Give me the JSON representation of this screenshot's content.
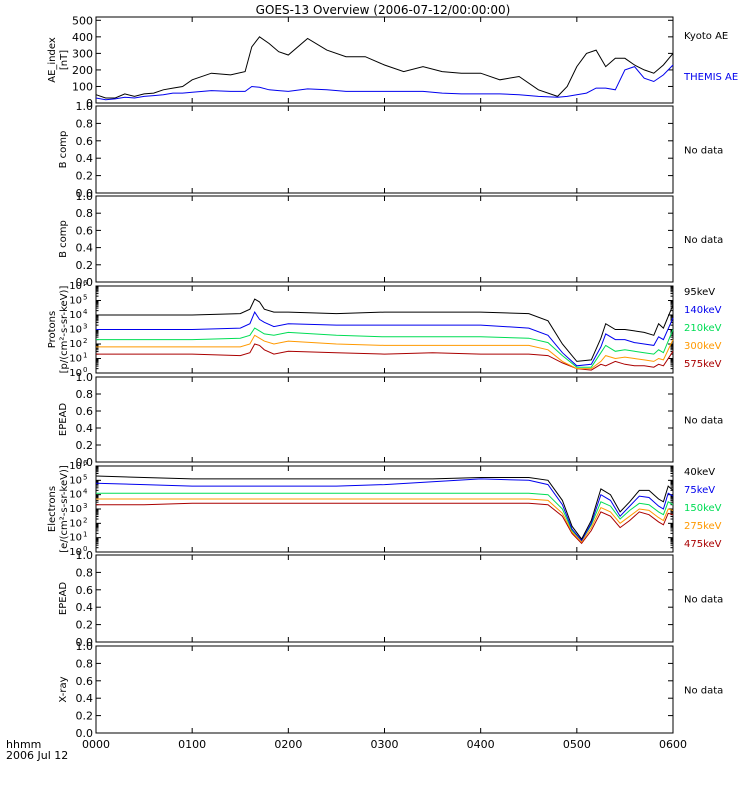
{
  "title": "GOES-13 Overview (2006-07-12/00:00:00)",
  "footer": {
    "line1": "hhmm",
    "line2": "2006 Jul 12"
  },
  "colors": {
    "black": "#000000",
    "blue": "#0000ee",
    "green": "#00dd55",
    "orange": "#ff9900",
    "red": "#aa0000"
  },
  "chart_data": {
    "type": "line",
    "x_unit": "hhmm",
    "x_range": [
      "0000",
      "0600"
    ],
    "x_ticks": [
      "0000",
      "0100",
      "0200",
      "0300",
      "0400",
      "0500",
      "0600"
    ],
    "panels": [
      {
        "ylabel": [
          "AE_index",
          "[nT]"
        ],
        "yticks": [
          "500",
          "400",
          "300",
          "200",
          "100",
          "0"
        ],
        "ylim": [
          0,
          520
        ],
        "scale": "linear",
        "x_hours": [
          0,
          0.1,
          0.2,
          0.3,
          0.4,
          0.5,
          0.6,
          0.7,
          0.8,
          0.9,
          1.0,
          1.2,
          1.4,
          1.55,
          1.62,
          1.7,
          1.8,
          1.9,
          2.0,
          2.2,
          2.4,
          2.6,
          2.8,
          3.0,
          3.2,
          3.4,
          3.6,
          3.8,
          4.0,
          4.2,
          4.4,
          4.6,
          4.8,
          4.9,
          5.0,
          5.1,
          5.2,
          5.3,
          5.4,
          5.5,
          5.6,
          5.7,
          5.8,
          5.9,
          6.0
        ],
        "series": [
          {
            "name": "Kyoto AE",
            "color": "#000000",
            "values": [
              50,
              30,
              30,
              55,
              40,
              55,
              60,
              80,
              90,
              100,
              140,
              180,
              170,
              190,
              340,
              400,
              360,
              310,
              290,
              390,
              320,
              280,
              280,
              230,
              190,
              220,
              190,
              180,
              180,
              140,
              160,
              80,
              40,
              100,
              220,
              300,
              320,
              220,
              270,
              270,
              230,
              200,
              180,
              230,
              300
            ]
          },
          {
            "name": "THEMIS AE",
            "color": "#0000ee",
            "values": [
              30,
              20,
              25,
              35,
              30,
              40,
              45,
              50,
              60,
              60,
              65,
              75,
              70,
              70,
              100,
              95,
              80,
              75,
              70,
              85,
              80,
              70,
              70,
              70,
              70,
              70,
              60,
              55,
              55,
              55,
              50,
              40,
              35,
              40,
              50,
              60,
              90,
              90,
              80,
              200,
              220,
              150,
              130,
              170,
              230
            ]
          }
        ]
      },
      {
        "ylabel": [
          "B comp"
        ],
        "yticks": [
          "1.0",
          "0.8",
          "0.6",
          "0.4",
          "0.2",
          "0.0"
        ],
        "ylim": [
          0,
          1
        ],
        "scale": "linear",
        "status": "No data"
      },
      {
        "ylabel": [
          "B comp"
        ],
        "yticks": [
          "1.0",
          "0.8",
          "0.6",
          "0.4",
          "0.2",
          "0.0"
        ],
        "ylim": [
          0,
          1
        ],
        "scale": "linear",
        "status": "No data"
      },
      {
        "ylabel": [
          "Protons",
          "[p/(cm²-s-sr-keV)]"
        ],
        "yticks_exp": [
          6,
          5,
          4,
          3,
          2,
          1,
          0
        ],
        "ylim_log10": [
          0,
          6
        ],
        "scale": "log",
        "x_hours": [
          0,
          0.5,
          1.0,
          1.5,
          1.6,
          1.65,
          1.7,
          1.75,
          1.85,
          2.0,
          2.5,
          3.0,
          3.5,
          4.0,
          4.5,
          4.7,
          4.85,
          5.0,
          5.15,
          5.25,
          5.3,
          5.4,
          5.5,
          5.6,
          5.7,
          5.8,
          5.85,
          5.9,
          6.0
        ],
        "series": [
          {
            "name": "575keV",
            "color": "#aa0000",
            "log10_values": [
              1.3,
              1.3,
              1.3,
              1.2,
              1.4,
              2.0,
              1.9,
              1.6,
              1.3,
              1.5,
              1.4,
              1.3,
              1.4,
              1.3,
              1.3,
              1.2,
              0.7,
              0.3,
              0.2,
              0.6,
              0.5,
              0.8,
              0.6,
              0.5,
              0.5,
              0.4,
              0.6,
              0.5,
              1.5
            ]
          },
          {
            "name": "300keV",
            "color": "#ff9900",
            "log10_values": [
              1.8,
              1.8,
              1.8,
              1.8,
              2.0,
              2.6,
              2.4,
              2.2,
              2.0,
              2.2,
              2.0,
              1.9,
              1.9,
              1.9,
              1.9,
              1.6,
              0.8,
              0.3,
              0.3,
              0.8,
              1.2,
              1.0,
              1.1,
              1.0,
              0.9,
              0.8,
              1.0,
              0.9,
              2.3
            ]
          },
          {
            "name": "210keV",
            "color": "#00dd55",
            "log10_values": [
              2.3,
              2.3,
              2.3,
              2.4,
              2.6,
              3.1,
              2.9,
              2.7,
              2.6,
              2.8,
              2.6,
              2.5,
              2.5,
              2.5,
              2.4,
              2.1,
              1.2,
              0.4,
              0.4,
              1.4,
              1.9,
              1.5,
              1.6,
              1.5,
              1.4,
              1.3,
              1.6,
              1.4,
              3.0
            ]
          },
          {
            "name": "140keV",
            "color": "#0000ee",
            "log10_values": [
              3.0,
              3.0,
              3.0,
              3.1,
              3.4,
              4.2,
              3.7,
              3.5,
              3.2,
              3.4,
              3.3,
              3.3,
              3.3,
              3.3,
              3.1,
              2.6,
              1.4,
              0.5,
              0.6,
              1.8,
              2.7,
              2.3,
              2.3,
              2.1,
              2.0,
              1.9,
              2.5,
              2.3,
              3.8
            ]
          },
          {
            "name": "95keV",
            "color": "#000000",
            "log10_values": [
              4.0,
              4.0,
              4.0,
              4.1,
              4.4,
              5.1,
              4.9,
              4.4,
              4.2,
              4.2,
              4.1,
              4.2,
              4.2,
              4.2,
              4.1,
              3.6,
              2.0,
              0.8,
              0.9,
              2.4,
              3.4,
              3.0,
              3.0,
              2.9,
              2.8,
              2.6,
              3.4,
              3.1,
              4.7
            ]
          }
        ]
      },
      {
        "ylabel": [
          "EPEAD"
        ],
        "yticks": [
          "1.0",
          "0.8",
          "0.6",
          "0.4",
          "0.2",
          "0.0"
        ],
        "ylim": [
          0,
          1
        ],
        "scale": "linear",
        "status": "No data"
      },
      {
        "ylabel": [
          "Electrons",
          "[e/(cm²-s-sr-keV)]"
        ],
        "yticks_exp": [
          6,
          5,
          4,
          3,
          2,
          1,
          0
        ],
        "ylim_log10": [
          0,
          6
        ],
        "scale": "log",
        "x_hours": [
          0,
          0.5,
          1.0,
          1.5,
          2.0,
          2.5,
          3.0,
          3.5,
          4.0,
          4.5,
          4.7,
          4.85,
          4.95,
          5.05,
          5.15,
          5.25,
          5.35,
          5.45,
          5.55,
          5.65,
          5.75,
          5.85,
          5.9,
          5.95,
          6.0
        ],
        "series": [
          {
            "name": "475keV",
            "color": "#aa0000",
            "log10_values": [
              3.3,
              3.3,
              3.4,
              3.4,
              3.4,
              3.4,
              3.4,
              3.4,
              3.4,
              3.4,
              3.3,
              2.5,
              1.3,
              0.6,
              1.5,
              2.8,
              2.5,
              1.7,
              2.2,
              2.8,
              2.6,
              2.1,
              1.9,
              2.7,
              2.6
            ]
          },
          {
            "name": "275keV",
            "color": "#ff9900",
            "log10_values": [
              3.7,
              3.7,
              3.7,
              3.7,
              3.7,
              3.7,
              3.7,
              3.7,
              3.7,
              3.7,
              3.6,
              2.7,
              1.4,
              0.7,
              1.7,
              3.1,
              2.8,
              2.0,
              2.5,
              3.0,
              2.9,
              2.4,
              2.2,
              3.0,
              2.9
            ]
          },
          {
            "name": "150keV",
            "color": "#00dd55",
            "log10_values": [
              4.1,
              4.1,
              4.1,
              4.1,
              4.1,
              4.1,
              4.1,
              4.1,
              4.1,
              4.1,
              4.0,
              3.0,
              1.5,
              0.8,
              1.9,
              3.5,
              3.2,
              2.3,
              2.9,
              3.4,
              3.3,
              2.8,
              2.6,
              3.5,
              3.3
            ]
          },
          {
            "name": "75keV",
            "color": "#0000ee",
            "log10_values": [
              4.8,
              4.7,
              4.6,
              4.6,
              4.6,
              4.6,
              4.7,
              4.9,
              5.1,
              5.0,
              4.7,
              3.3,
              1.6,
              0.8,
              2.0,
              4.0,
              3.6,
              2.5,
              3.2,
              3.9,
              3.8,
              3.2,
              3.0,
              4.1,
              3.9
            ]
          },
          {
            "name": "40keV",
            "color": "#000000",
            "log10_values": [
              5.3,
              5.2,
              5.1,
              5.1,
              5.1,
              5.1,
              5.1,
              5.1,
              5.2,
              5.2,
              5.0,
              3.6,
              1.8,
              0.9,
              2.2,
              4.4,
              4.0,
              2.8,
              3.5,
              4.3,
              4.3,
              3.7,
              3.5,
              4.6,
              4.3
            ]
          }
        ]
      },
      {
        "ylabel": [
          "EPEAD"
        ],
        "yticks": [
          "1.0",
          "0.8",
          "0.6",
          "0.4",
          "0.2",
          "0.0"
        ],
        "ylim": [
          0,
          1
        ],
        "scale": "linear",
        "status": "No data"
      },
      {
        "ylabel": [
          "X-ray"
        ],
        "yticks": [
          "1.0",
          "0.8",
          "0.6",
          "0.4",
          "0.2",
          "0.0"
        ],
        "ylim": [
          0,
          1
        ],
        "scale": "linear",
        "status": "No data"
      }
    ]
  }
}
